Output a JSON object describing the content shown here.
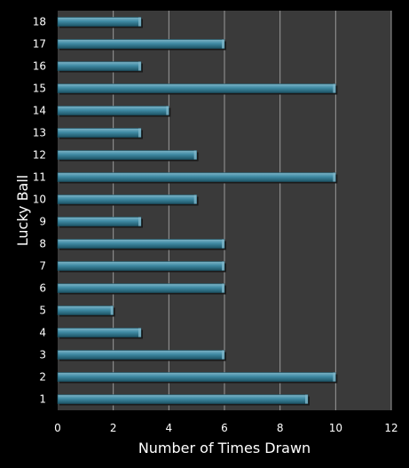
{
  "chart_data": {
    "type": "bar",
    "orientation": "horizontal",
    "categories": [
      "1",
      "2",
      "3",
      "4",
      "5",
      "6",
      "7",
      "8",
      "9",
      "10",
      "11",
      "12",
      "13",
      "14",
      "15",
      "16",
      "17",
      "18"
    ],
    "values": [
      9,
      10,
      6,
      3,
      2,
      6,
      6,
      6,
      3,
      5,
      10,
      5,
      3,
      4,
      10,
      3,
      6,
      3
    ],
    "xlabel": "Number of Times Drawn",
    "ylabel": "Lucky Ball",
    "xlim": [
      0,
      12
    ],
    "xticks": [
      "0",
      "2",
      "4",
      "6",
      "8",
      "10",
      "12"
    ],
    "grid": "vertical",
    "colors": {
      "background": "#000000",
      "plot_area": "#3a3a3a",
      "gridline": "#9a9a9a",
      "bar_light": "#7fb6c9",
      "bar_mid": "#3f8aa3",
      "bar_dark": "#1d5466"
    }
  }
}
